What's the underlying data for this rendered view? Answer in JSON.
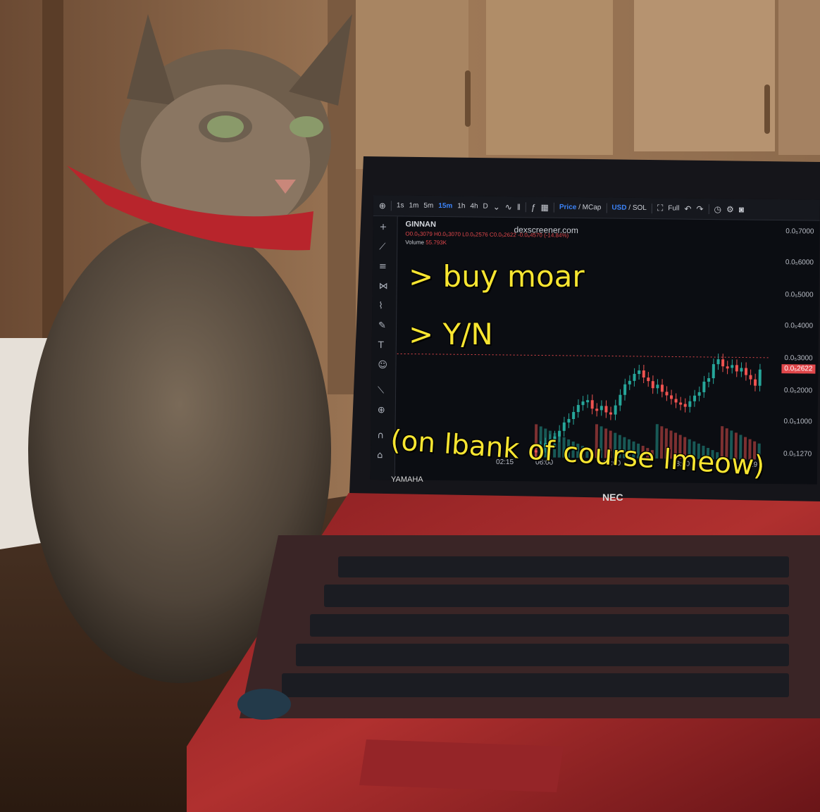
{
  "chart_toolbar": {
    "intervals": [
      "1s",
      "1m",
      "5m",
      "15m",
      "1h",
      "4h",
      "D"
    ],
    "active_interval": "15m",
    "price_label": "Price",
    "mcap_label": "MCap",
    "usd_label": "USD",
    "sol_label": "SOL",
    "full_label": "Full"
  },
  "chart_legend": {
    "symbol": "GINNAN",
    "ohlc": "O0.0₅3079 H0.0₅3070 L0.0₅2576 C0.0₅2622 -0.0₆4570 (-14.84%)",
    "volume_label": "Volume",
    "volume_value": "55.793K",
    "watermark": "dexscreener.com"
  },
  "chart_data": {
    "type": "candlestick",
    "y_ticks": [
      "0.0₅7000",
      "0.0₅6000",
      "0.0₅5000",
      "0.0₅4000",
      "0.0₅3000",
      "0.0₅2000",
      "0.0₅1000",
      "0.0₅1270"
    ],
    "x_ticks": [
      "02:15",
      "06:00",
      "12:00",
      "18:00",
      "29"
    ],
    "current_price": "0.0₅2622",
    "up_color": "#26a69a",
    "down_color": "#ef5350"
  },
  "meme_text": {
    "line1": "> buy moar",
    "line2": "> Y/N",
    "line3": "(on lbank of course lmeow)"
  },
  "laptop": {
    "brand": "NEC",
    "speaker_brand": "YAMAHA"
  }
}
